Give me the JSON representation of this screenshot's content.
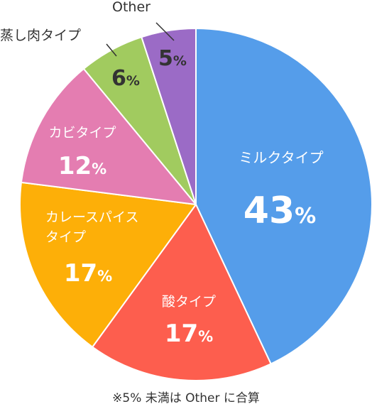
{
  "chart_data": {
    "type": "pie",
    "title": "",
    "start_angle_deg": 0,
    "direction": "clockwise",
    "slices": [
      {
        "label": "ミルクタイプ",
        "value": 43,
        "value_text": "43",
        "color": "#559dea",
        "label_color": "#ffffff"
      },
      {
        "label": "酸タイプ",
        "value": 17,
        "value_text": "17",
        "color": "#fd5e4e",
        "label_color": "#ffffff"
      },
      {
        "label": "カレースパイス\nタイプ",
        "value": 17,
        "value_text": "17",
        "color": "#fdaf08",
        "label_color": "#ffffff"
      },
      {
        "label": "カビタイプ",
        "value": 12,
        "value_text": "12",
        "color": "#e47db1",
        "label_color": "#ffffff"
      },
      {
        "label": "蒸し肉タイプ",
        "value": 6,
        "value_text": "6",
        "color": "#a1cb5f",
        "label_color": "#333333"
      },
      {
        "label": "Other",
        "value": 5,
        "value_text": "5",
        "color": "#9b6bc6",
        "label_color": "#333333"
      }
    ],
    "unit": "%"
  },
  "footnote": "※5% 未満は Other に合算"
}
